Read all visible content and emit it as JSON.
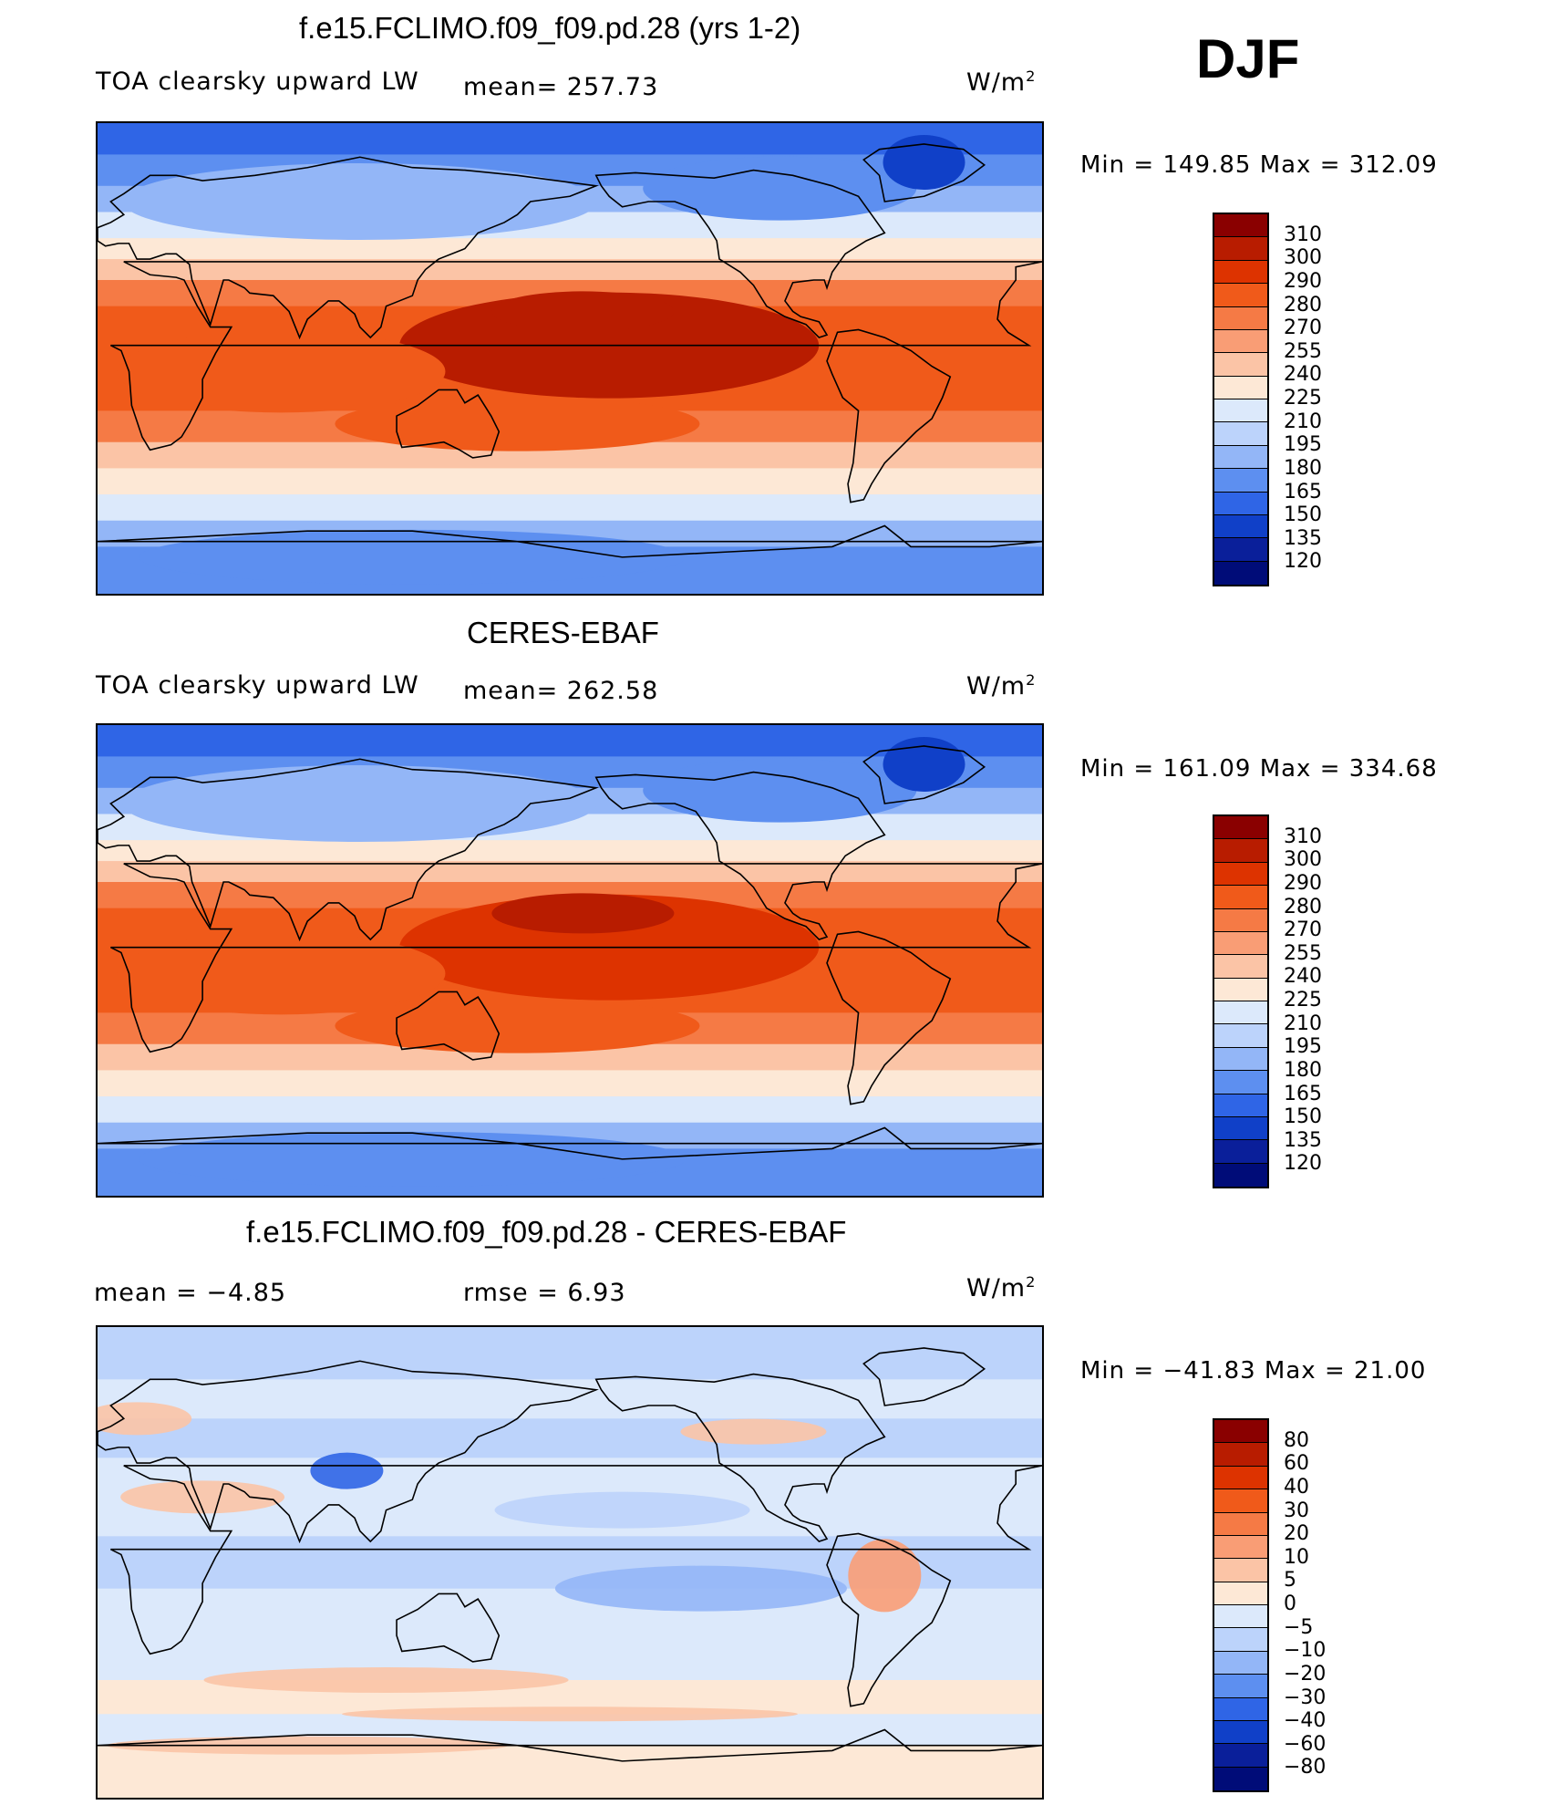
{
  "season": "DJF",
  "panels": [
    {
      "title": "f.e15.FCLIMO.f09_f09.pd.28 (yrs 1-2)",
      "left_label": "TOA clearsky upward LW",
      "mean_label": "mean= 257.73",
      "units": "W/m",
      "units_sup": "2",
      "min_max": "Min  =  149.85  Max  =  312.09",
      "colorbar": {
        "labels": [
          "310",
          "300",
          "290",
          "280",
          "270",
          "255",
          "240",
          "225",
          "210",
          "195",
          "180",
          "165",
          "150",
          "135",
          "120"
        ],
        "colors": [
          "#8a0000",
          "#b81c00",
          "#dd3300",
          "#f05a1a",
          "#f57a45",
          "#f99d75",
          "#fbc4a6",
          "#fde8d6",
          "#dce9fb",
          "#bcd3fb",
          "#93b6f7",
          "#5d8ff0",
          "#2f65e6",
          "#1040c8",
          "#0a1f9a",
          "#000c78"
        ]
      },
      "map": {
        "type": "full_field",
        "style": "model"
      }
    },
    {
      "title": "CERES-EBAF",
      "left_label": "TOA clearsky upward LW",
      "mean_label": "mean= 262.58",
      "units": "W/m",
      "units_sup": "2",
      "min_max": "Min  =  161.09  Max  =  334.68",
      "colorbar": {
        "labels": [
          "310",
          "300",
          "290",
          "280",
          "270",
          "255",
          "240",
          "225",
          "210",
          "195",
          "180",
          "165",
          "150",
          "135",
          "120"
        ],
        "colors": [
          "#8a0000",
          "#b81c00",
          "#dd3300",
          "#f05a1a",
          "#f57a45",
          "#f99d75",
          "#fbc4a6",
          "#fde8d6",
          "#dce9fb",
          "#bcd3fb",
          "#93b6f7",
          "#5d8ff0",
          "#2f65e6",
          "#1040c8",
          "#0a1f9a",
          "#000c78"
        ]
      },
      "map": {
        "type": "full_field",
        "style": "obs"
      }
    },
    {
      "title": "f.e15.FCLIMO.f09_f09.pd.28 - CERES-EBAF",
      "left_label": "mean  =    −4.85",
      "mean_label": "rmse  =     6.93",
      "units": "W/m",
      "units_sup": "2",
      "min_max": "Min  =  −41.83  Max  =    21.00",
      "colorbar": {
        "labels": [
          "80",
          "60",
          "40",
          "30",
          "20",
          "10",
          "5",
          "0",
          "−5",
          "−10",
          "−20",
          "−30",
          "−40",
          "−60",
          "−80"
        ],
        "colors": [
          "#8a0000",
          "#b81c00",
          "#dd3300",
          "#f05a1a",
          "#f57a45",
          "#f99d75",
          "#fbc4a6",
          "#fde8d6",
          "#dce9fb",
          "#bcd3fb",
          "#93b6f7",
          "#5d8ff0",
          "#2f65e6",
          "#1040c8",
          "#0a1f9a",
          "#000c78"
        ]
      },
      "map": {
        "type": "difference"
      }
    }
  ]
}
